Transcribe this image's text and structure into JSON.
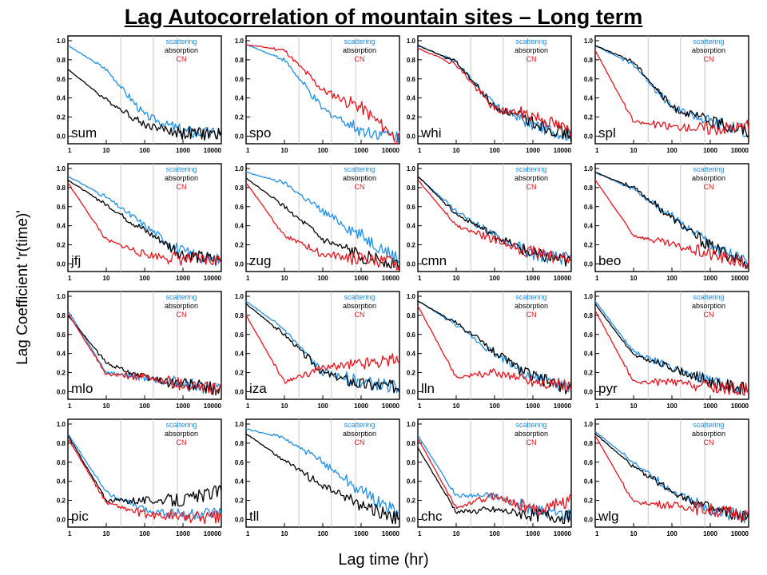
{
  "title": "Lag Autocorrelation of mountain sites – Long term",
  "ylabel": "Lag Coefficient 'r(time)'",
  "xlabel": "Lag time (hr)",
  "colors": {
    "scattering": "#1f8fe6",
    "absorption": "#000000",
    "CN": "#e8141c",
    "fit": "#c8b400",
    "gridline": "#c8c8c8"
  },
  "chart_data": {
    "type": "line",
    "xscale": "log",
    "xlim": [
      1,
      10000
    ],
    "ylim": [
      -0.08,
      1.05
    ],
    "x_ticks": [
      1,
      10,
      100,
      1000,
      10000
    ],
    "x_tick_labels": [
      "1",
      "10",
      "100",
      "1000",
      "10000"
    ],
    "y_ticks": [
      0.0,
      0.2,
      0.4,
      0.6,
      0.8,
      1.0
    ],
    "y_tick_labels": [
      "0.0",
      "0.2",
      "0.4",
      "0.6",
      "0.8",
      "1.0"
    ],
    "reference_lines_x": [
      24,
      168,
      720
    ],
    "legend": [
      "scattering",
      "absorption",
      "CN"
    ],
    "legend_placement": "top-right",
    "panels": [
      {
        "site": "sum",
        "series": [
          {
            "name": "scattering",
            "x": [
              1,
              10,
              100,
              1000,
              10000
            ],
            "values": [
              0.95,
              0.7,
              0.22,
              0.05,
              0.02
            ]
          },
          {
            "name": "absorption",
            "x": [
              1,
              10,
              100,
              1000,
              10000
            ],
            "values": [
              0.7,
              0.38,
              0.12,
              0.03,
              0.02
            ]
          }
        ]
      },
      {
        "site": "spo",
        "series": [
          {
            "name": "scattering",
            "x": [
              1,
              10,
              100,
              1000,
              10000
            ],
            "values": [
              0.96,
              0.8,
              0.28,
              0.06,
              0.0
            ]
          },
          {
            "name": "CN",
            "x": [
              1,
              10,
              100,
              1000,
              10000
            ],
            "values": [
              0.96,
              0.9,
              0.48,
              0.3,
              -0.05
            ]
          }
        ]
      },
      {
        "site": "whi",
        "series": [
          {
            "name": "scattering",
            "x": [
              1,
              10,
              100,
              1000,
              10000
            ],
            "values": [
              0.95,
              0.78,
              0.32,
              0.12,
              0.0
            ]
          },
          {
            "name": "absorption",
            "x": [
              1,
              10,
              100,
              1000,
              10000
            ],
            "values": [
              0.95,
              0.78,
              0.3,
              0.15,
              0.0
            ]
          },
          {
            "name": "CN",
            "x": [
              1,
              10,
              100,
              1000,
              10000
            ],
            "values": [
              0.92,
              0.75,
              0.28,
              0.22,
              0.05
            ]
          }
        ]
      },
      {
        "site": "spl",
        "series": [
          {
            "name": "scattering",
            "x": [
              1,
              10,
              100,
              1000,
              10000
            ],
            "values": [
              0.95,
              0.75,
              0.3,
              0.15,
              0.05
            ]
          },
          {
            "name": "absorption",
            "x": [
              1,
              10,
              100,
              1000,
              10000
            ],
            "values": [
              0.95,
              0.78,
              0.3,
              0.15,
              0.05
            ]
          },
          {
            "name": "CN",
            "x": [
              1,
              10,
              100,
              1000,
              10000
            ],
            "values": [
              0.9,
              0.15,
              0.1,
              0.08,
              0.1
            ]
          }
        ]
      },
      {
        "site": "jfj",
        "series": [
          {
            "name": "scattering",
            "x": [
              1,
              10,
              100,
              1000,
              10000
            ],
            "values": [
              0.92,
              0.7,
              0.4,
              0.12,
              0.03
            ]
          },
          {
            "name": "absorption",
            "x": [
              1,
              10,
              100,
              1000,
              10000
            ],
            "values": [
              0.88,
              0.62,
              0.35,
              0.1,
              0.03
            ]
          },
          {
            "name": "CN",
            "x": [
              1,
              10,
              100,
              1000,
              10000
            ],
            "values": [
              0.85,
              0.25,
              0.1,
              0.05,
              0.03
            ]
          }
        ]
      },
      {
        "site": "zug",
        "series": [
          {
            "name": "scattering",
            "x": [
              1,
              10,
              100,
              1000,
              10000
            ],
            "values": [
              0.96,
              0.85,
              0.55,
              0.3,
              0.05
            ]
          },
          {
            "name": "absorption",
            "x": [
              1,
              10,
              100,
              1000,
              10000
            ],
            "values": [
              0.9,
              0.6,
              0.25,
              0.08,
              0.0
            ]
          },
          {
            "name": "CN",
            "x": [
              1,
              10,
              100,
              1000,
              10000
            ],
            "values": [
              0.85,
              0.3,
              0.1,
              0.05,
              0.0
            ]
          }
        ]
      },
      {
        "site": "cmn",
        "series": [
          {
            "name": "scattering",
            "x": [
              1,
              10,
              100,
              1000,
              10000
            ],
            "values": [
              0.92,
              0.55,
              0.3,
              0.1,
              0.05
            ]
          },
          {
            "name": "absorption",
            "x": [
              1,
              10,
              100,
              1000,
              10000
            ],
            "values": [
              0.92,
              0.52,
              0.3,
              0.1,
              0.02
            ]
          },
          {
            "name": "CN",
            "x": [
              1,
              10,
              100,
              1000,
              10000
            ],
            "values": [
              0.88,
              0.4,
              0.25,
              0.12,
              0.05
            ]
          }
        ]
      },
      {
        "site": "beo",
        "series": [
          {
            "name": "scattering",
            "x": [
              1,
              10,
              100,
              1000,
              10000
            ],
            "values": [
              0.96,
              0.78,
              0.5,
              0.2,
              0.0
            ]
          },
          {
            "name": "absorption",
            "x": [
              1,
              10,
              100,
              1000,
              10000
            ],
            "values": [
              0.96,
              0.8,
              0.48,
              0.18,
              0.0
            ]
          },
          {
            "name": "CN",
            "x": [
              1,
              10,
              100,
              1000,
              10000
            ],
            "values": [
              0.88,
              0.3,
              0.2,
              0.1,
              0.0
            ]
          }
        ]
      },
      {
        "site": "mlo",
        "series": [
          {
            "name": "scattering",
            "x": [
              1,
              10,
              100,
              1000,
              10000
            ],
            "values": [
              0.85,
              0.2,
              0.15,
              0.08,
              0.02
            ]
          },
          {
            "name": "absorption",
            "x": [
              1,
              10,
              100,
              1000,
              10000
            ],
            "values": [
              0.8,
              0.3,
              0.15,
              0.08,
              0.02
            ]
          },
          {
            "name": "CN",
            "x": [
              1,
              10,
              100,
              1000,
              10000
            ],
            "values": [
              0.82,
              0.18,
              0.15,
              0.08,
              0.02
            ]
          }
        ]
      },
      {
        "site": "iza",
        "series": [
          {
            "name": "scattering",
            "x": [
              1,
              10,
              100,
              1000,
              10000
            ],
            "values": [
              0.95,
              0.65,
              0.2,
              0.1,
              0.05
            ]
          },
          {
            "name": "absorption",
            "x": [
              1,
              10,
              100,
              1000,
              10000
            ],
            "values": [
              0.92,
              0.6,
              0.2,
              0.08,
              0.05
            ]
          },
          {
            "name": "CN",
            "x": [
              1,
              10,
              100,
              1000,
              10000
            ],
            "values": [
              0.8,
              0.1,
              0.25,
              0.3,
              0.35
            ]
          }
        ]
      },
      {
        "site": "lln",
        "series": [
          {
            "name": "scattering",
            "x": [
              1,
              10,
              100,
              1000,
              10000
            ],
            "values": [
              0.95,
              0.7,
              0.4,
              0.15,
              0.03
            ]
          },
          {
            "name": "absorption",
            "x": [
              1,
              10,
              100,
              1000,
              10000
            ],
            "values": [
              0.95,
              0.72,
              0.42,
              0.15,
              0.03
            ]
          },
          {
            "name": "CN",
            "x": [
              1,
              10,
              100,
              1000,
              10000
            ],
            "values": [
              0.9,
              0.15,
              0.2,
              0.12,
              0.05
            ]
          }
        ]
      },
      {
        "site": "pyr",
        "series": [
          {
            "name": "scattering",
            "x": [
              1,
              10,
              100,
              1000,
              10000
            ],
            "values": [
              0.95,
              0.42,
              0.25,
              0.1,
              0.02
            ]
          },
          {
            "name": "absorption",
            "x": [
              1,
              10,
              100,
              1000,
              10000
            ],
            "values": [
              0.92,
              0.38,
              0.25,
              0.1,
              0.02
            ]
          },
          {
            "name": "CN",
            "x": [
              1,
              10,
              100,
              1000,
              10000
            ],
            "values": [
              0.85,
              0.1,
              0.1,
              0.05,
              0.02
            ]
          }
        ]
      },
      {
        "site": "pic",
        "series": [
          {
            "name": "scattering",
            "x": [
              1,
              10,
              100,
              1000,
              10000
            ],
            "values": [
              0.9,
              0.28,
              0.1,
              0.05,
              0.05
            ]
          },
          {
            "name": "absorption",
            "x": [
              1,
              10,
              100,
              1000,
              10000
            ],
            "values": [
              0.88,
              0.2,
              0.2,
              0.2,
              0.3
            ]
          },
          {
            "name": "CN",
            "x": [
              1,
              10,
              100,
              1000,
              10000
            ],
            "values": [
              0.85,
              0.18,
              0.05,
              0.02,
              0.02
            ]
          }
        ]
      },
      {
        "site": "tll",
        "series": [
          {
            "name": "scattering",
            "x": [
              1,
              10,
              100,
              1000,
              10000
            ],
            "values": [
              0.95,
              0.85,
              0.6,
              0.3,
              0.05
            ]
          },
          {
            "name": "absorption",
            "x": [
              1,
              10,
              100,
              1000,
              10000
            ],
            "values": [
              0.9,
              0.62,
              0.35,
              0.15,
              0.0
            ]
          }
        ]
      },
      {
        "site": "chc",
        "series": [
          {
            "name": "scattering",
            "x": [
              1,
              10,
              100,
              1000,
              10000
            ],
            "values": [
              0.88,
              0.25,
              0.25,
              0.1,
              0.05
            ]
          },
          {
            "name": "absorption",
            "x": [
              1,
              10,
              100,
              1000,
              10000
            ],
            "values": [
              0.75,
              0.08,
              0.1,
              0.05,
              0.02
            ]
          },
          {
            "name": "CN",
            "x": [
              1,
              10,
              100,
              1000,
              10000
            ],
            "values": [
              0.85,
              0.12,
              0.25,
              0.1,
              0.2
            ]
          }
        ]
      },
      {
        "site": "wlg",
        "series": [
          {
            "name": "scattering",
            "x": [
              1,
              10,
              100,
              1000,
              10000
            ],
            "values": [
              0.92,
              0.6,
              0.3,
              0.1,
              0.02
            ]
          },
          {
            "name": "absorption",
            "x": [
              1,
              10,
              100,
              1000,
              10000
            ],
            "values": [
              0.9,
              0.55,
              0.3,
              0.1,
              0.02
            ]
          },
          {
            "name": "CN",
            "x": [
              1,
              10,
              100,
              1000,
              10000
            ],
            "values": [
              0.88,
              0.18,
              0.15,
              0.1,
              0.05
            ]
          }
        ]
      }
    ]
  }
}
